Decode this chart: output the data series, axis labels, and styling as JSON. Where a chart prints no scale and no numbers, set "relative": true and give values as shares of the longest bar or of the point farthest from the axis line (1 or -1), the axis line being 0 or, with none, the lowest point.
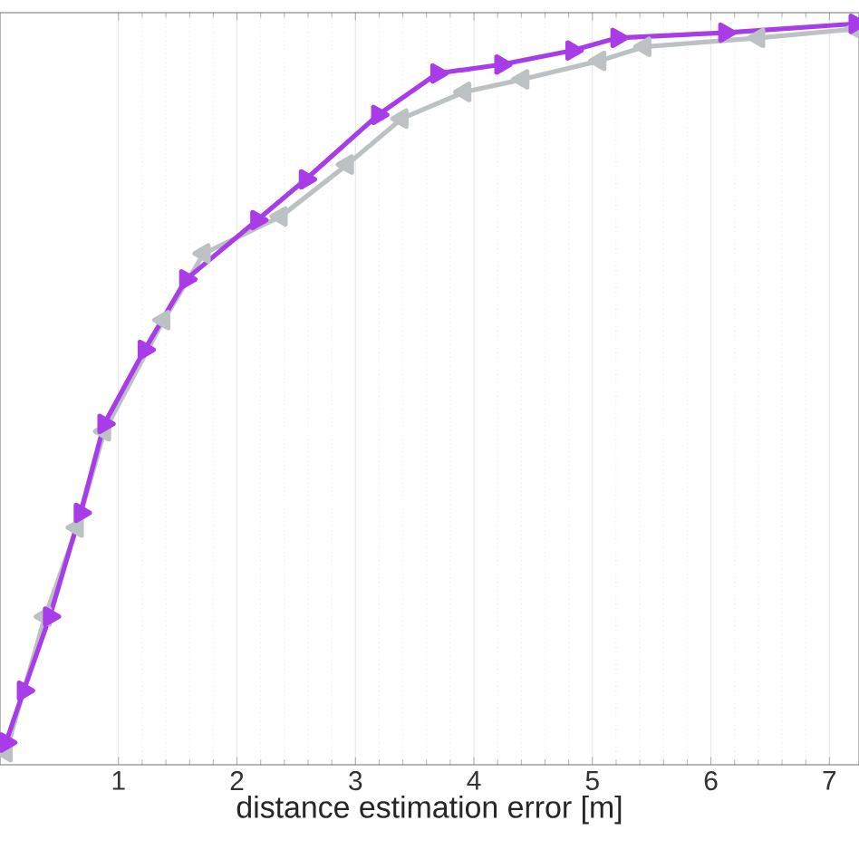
{
  "chart_data": {
    "type": "line",
    "xlabel": "distance estimation error [m]",
    "relative": true,
    "xlim": [
      0,
      7.25
    ],
    "xticks": [
      1,
      2,
      3,
      4,
      5,
      6,
      7
    ],
    "tick_labels": "x",
    "grid": "x",
    "marker": "triangle",
    "series": [
      {
        "color": "#a83ce8",
        "x": [
          0.05,
          0.2,
          0.42,
          0.68,
          0.88,
          1.22,
          1.57,
          2.17,
          2.58,
          3.19,
          3.69,
          4.23,
          4.83,
          5.21,
          6.12,
          7.22
        ],
        "values": [
          0.03,
          0.1,
          0.2,
          0.34,
          0.46,
          0.56,
          0.655,
          0.735,
          0.79,
          0.877,
          0.933,
          0.945,
          0.964,
          0.981,
          0.988,
          1
        ]
      },
      {
        "color": "#bcc2c3",
        "x": [
          0.05,
          0.38,
          0.65,
          0.88,
          1.38,
          1.72,
          2.37,
          2.93,
          3.39,
          3.92,
          4.41,
          5.06,
          5.44,
          6.4,
          7.22
        ],
        "values": [
          0.017,
          0.2,
          0.32,
          0.45,
          0.6,
          0.69,
          0.74,
          0.81,
          0.872,
          0.908,
          0.925,
          0.95,
          0.969,
          0.981,
          0.993
        ]
      }
    ]
  }
}
